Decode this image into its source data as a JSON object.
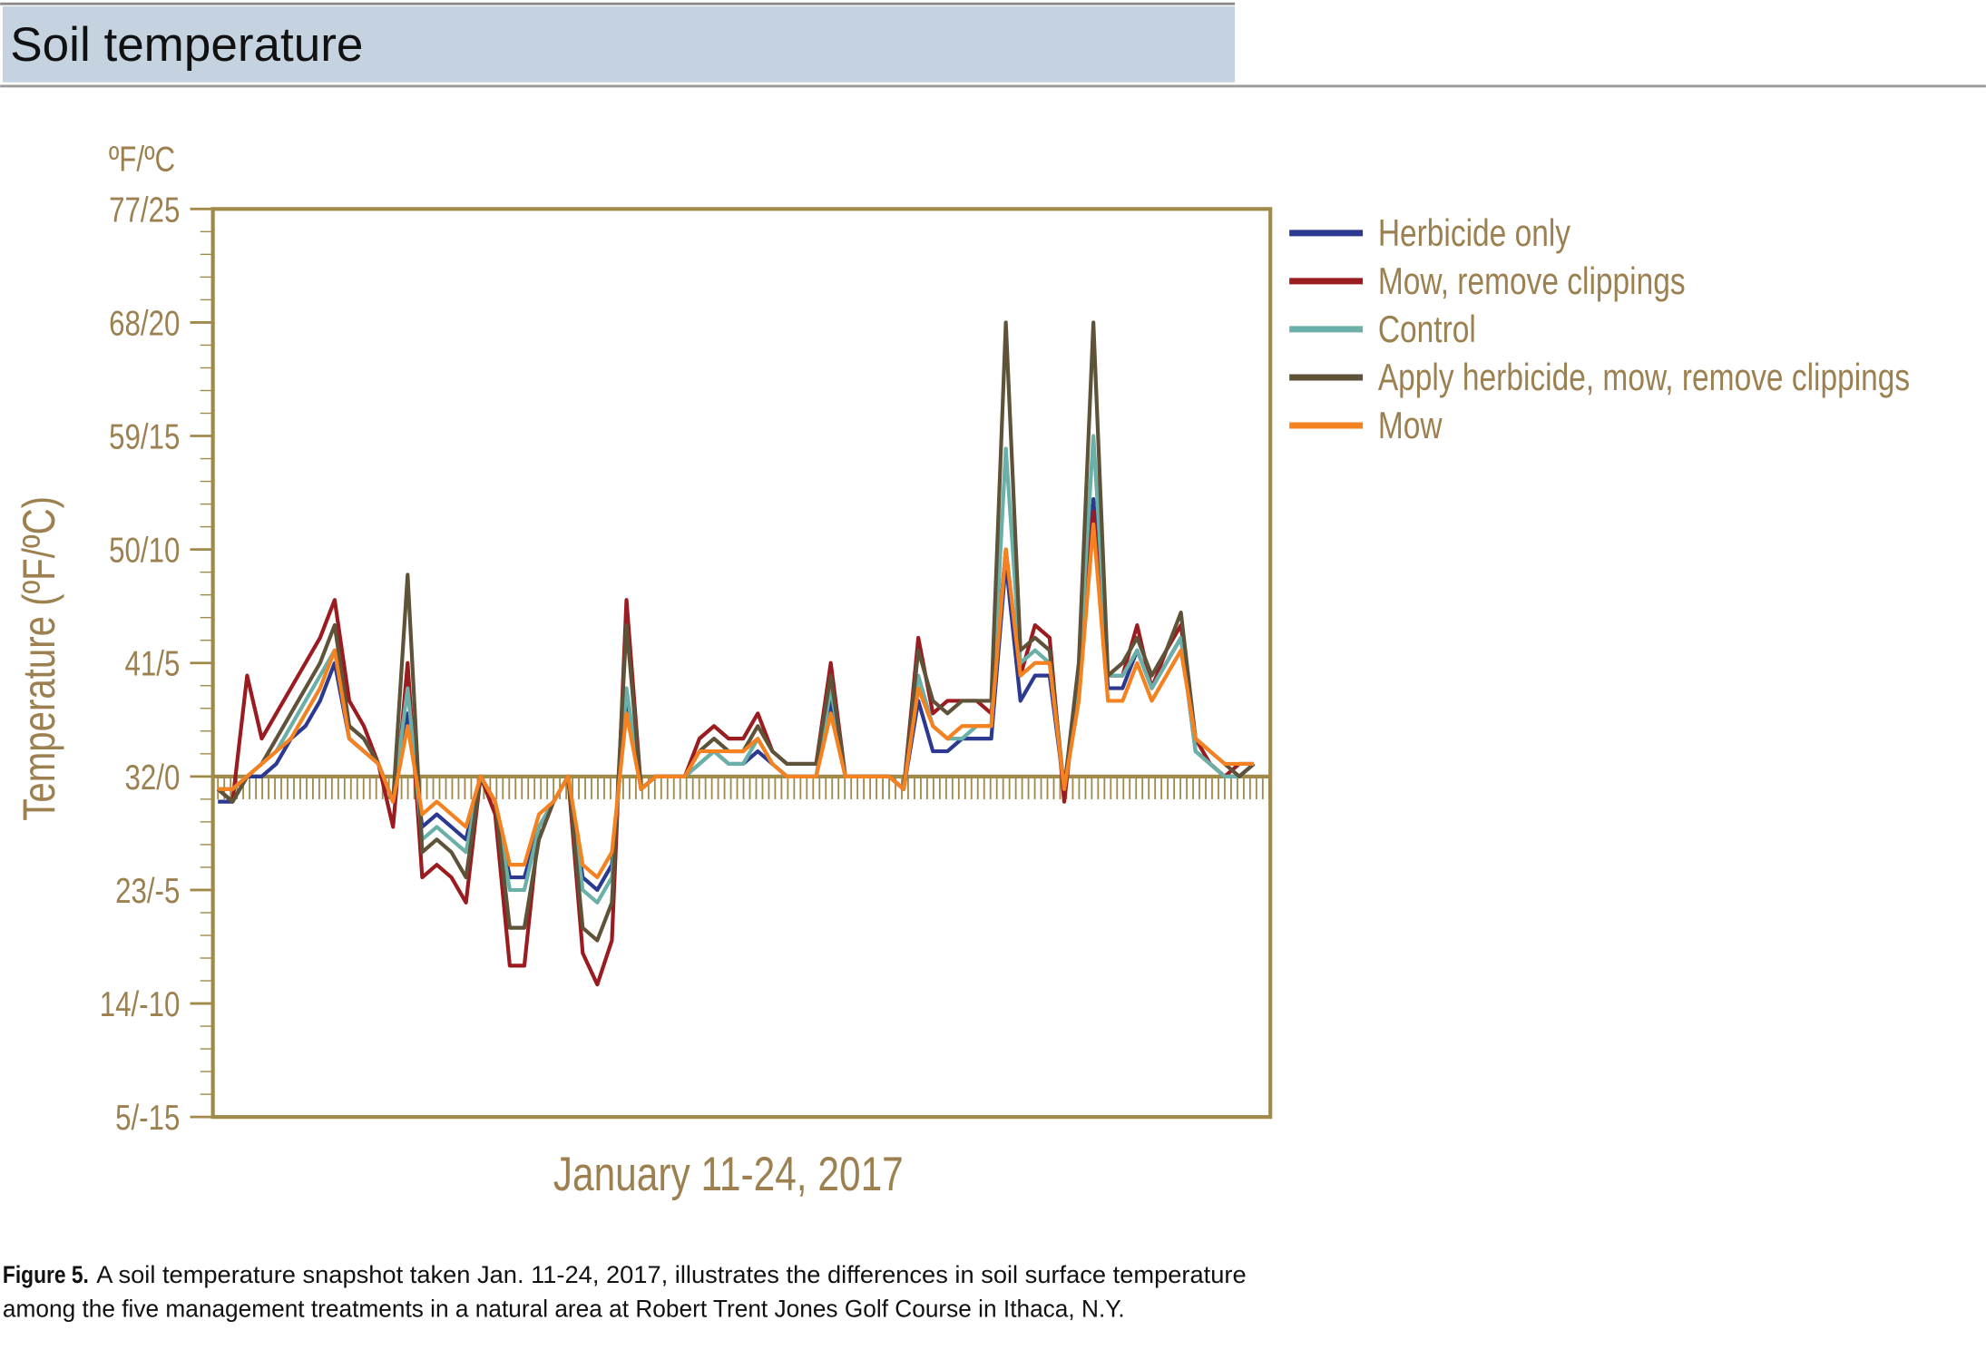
{
  "header": {
    "title": "Soil temperature"
  },
  "chart_data": {
    "type": "line",
    "y_unit": "ºF/ºC",
    "y_label": "Temperature (ºF/ºC)",
    "x_label": "January 11-24, 2017",
    "ylim": [
      5,
      77
    ],
    "yticks": [
      {
        "value": 5,
        "label": "5/-15"
      },
      {
        "value": 14,
        "label": "14/-10"
      },
      {
        "value": 23,
        "label": "23/-5"
      },
      {
        "value": 32,
        "label": "32/0"
      },
      {
        "value": 41,
        "label": "41/5"
      },
      {
        "value": 50,
        "label": "50/10"
      },
      {
        "value": 59,
        "label": "59/15"
      },
      {
        "value": 68,
        "label": "68/20"
      },
      {
        "value": 77,
        "label": "77/25"
      }
    ],
    "baseline": 32,
    "series": [
      {
        "name": "Herbicide only",
        "color": "#2b3990",
        "values": [
          30,
          30,
          32,
          32,
          33,
          35,
          36,
          38,
          41,
          35,
          34,
          33,
          30,
          37,
          28,
          29,
          28,
          27,
          32,
          30,
          24,
          24,
          28,
          30,
          32,
          24,
          23,
          25,
          38,
          31,
          32,
          32,
          32,
          33,
          34,
          33,
          33,
          34,
          33,
          32,
          32,
          32,
          38,
          32,
          32,
          32,
          32,
          31,
          38,
          34,
          34,
          35,
          35,
          35,
          49,
          38,
          40,
          40,
          31,
          39,
          54,
          39,
          39,
          42,
          39,
          41,
          43,
          34,
          33,
          32,
          32,
          33
        ]
      },
      {
        "name": "Mow, remove clippings",
        "color": "#9b1c20",
        "values": [
          31,
          30,
          40,
          35,
          37,
          39,
          41,
          43,
          46,
          38,
          36,
          33,
          28,
          41,
          24,
          25,
          24,
          22,
          32,
          29,
          17,
          17,
          28,
          30,
          32,
          18,
          15.5,
          19,
          46,
          31,
          32,
          32,
          32,
          35,
          36,
          35,
          35,
          37,
          34,
          33,
          33,
          33,
          41,
          32,
          32,
          32,
          32,
          31,
          43,
          37,
          38,
          38,
          38,
          37,
          50,
          40,
          44,
          43,
          30,
          40,
          53,
          40,
          40,
          44,
          39,
          42,
          44,
          35,
          33,
          32,
          33,
          33
        ]
      },
      {
        "name": "Control",
        "color": "#6ab0a8",
        "values": [
          31,
          31,
          32,
          33,
          34,
          36,
          38,
          40,
          42,
          36,
          35,
          33,
          30,
          39,
          27,
          28,
          27,
          26,
          32,
          30,
          23,
          23,
          28,
          30,
          32,
          23,
          22,
          24,
          39,
          31,
          32,
          32,
          32,
          33,
          34,
          33,
          33,
          35,
          33,
          32,
          32,
          32,
          39,
          32,
          32,
          32,
          32,
          31,
          40,
          36,
          35,
          35,
          36,
          36,
          58,
          41,
          42,
          41,
          31,
          40,
          59,
          40,
          40,
          42,
          39,
          41,
          43,
          34,
          33,
          32,
          32,
          33
        ]
      },
      {
        "name": "Apply herbicide, mow, remove clippings",
        "color": "#5e5238",
        "values": [
          31,
          30,
          32,
          33,
          35,
          37,
          39,
          41,
          44,
          36,
          35,
          33,
          30,
          48,
          26,
          27,
          26,
          24,
          32,
          30,
          20,
          20,
          27,
          30,
          32,
          20,
          19,
          22,
          44,
          31,
          32,
          32,
          32,
          34,
          35,
          34,
          34,
          36,
          34,
          33,
          33,
          33,
          40,
          32,
          32,
          32,
          32,
          31,
          42,
          38,
          37,
          38,
          38,
          38,
          68,
          42,
          43,
          42,
          31,
          41,
          68,
          40,
          41,
          43,
          40,
          42,
          45,
          35,
          34,
          33,
          32,
          33
        ]
      },
      {
        "name": "Mow",
        "color": "#f58220",
        "values": [
          31,
          31,
          32,
          33,
          34,
          35,
          37,
          39,
          42,
          35,
          34,
          33,
          30,
          36,
          29,
          30,
          29,
          28,
          32,
          30,
          25,
          25,
          29,
          30,
          32,
          25,
          24,
          26,
          37,
          31,
          32,
          32,
          32,
          34,
          34,
          34,
          34,
          35,
          33,
          32,
          32,
          32,
          37,
          32,
          32,
          32,
          32,
          31,
          39,
          36,
          35,
          36,
          36,
          36,
          50,
          40,
          41,
          41,
          31,
          38,
          52,
          38,
          38,
          41,
          38,
          40,
          42,
          35,
          34,
          33,
          33,
          33
        ]
      }
    ]
  },
  "caption": {
    "label": "Figure 5.",
    "lines": [
      "A soil temperature snapshot taken Jan. 11-24, 2017, illustrates the differences in soil surface temperature",
      "among the five management treatments in a natural area at Robert Trent Jones Golf Course in Ithaca, N.Y."
    ]
  }
}
